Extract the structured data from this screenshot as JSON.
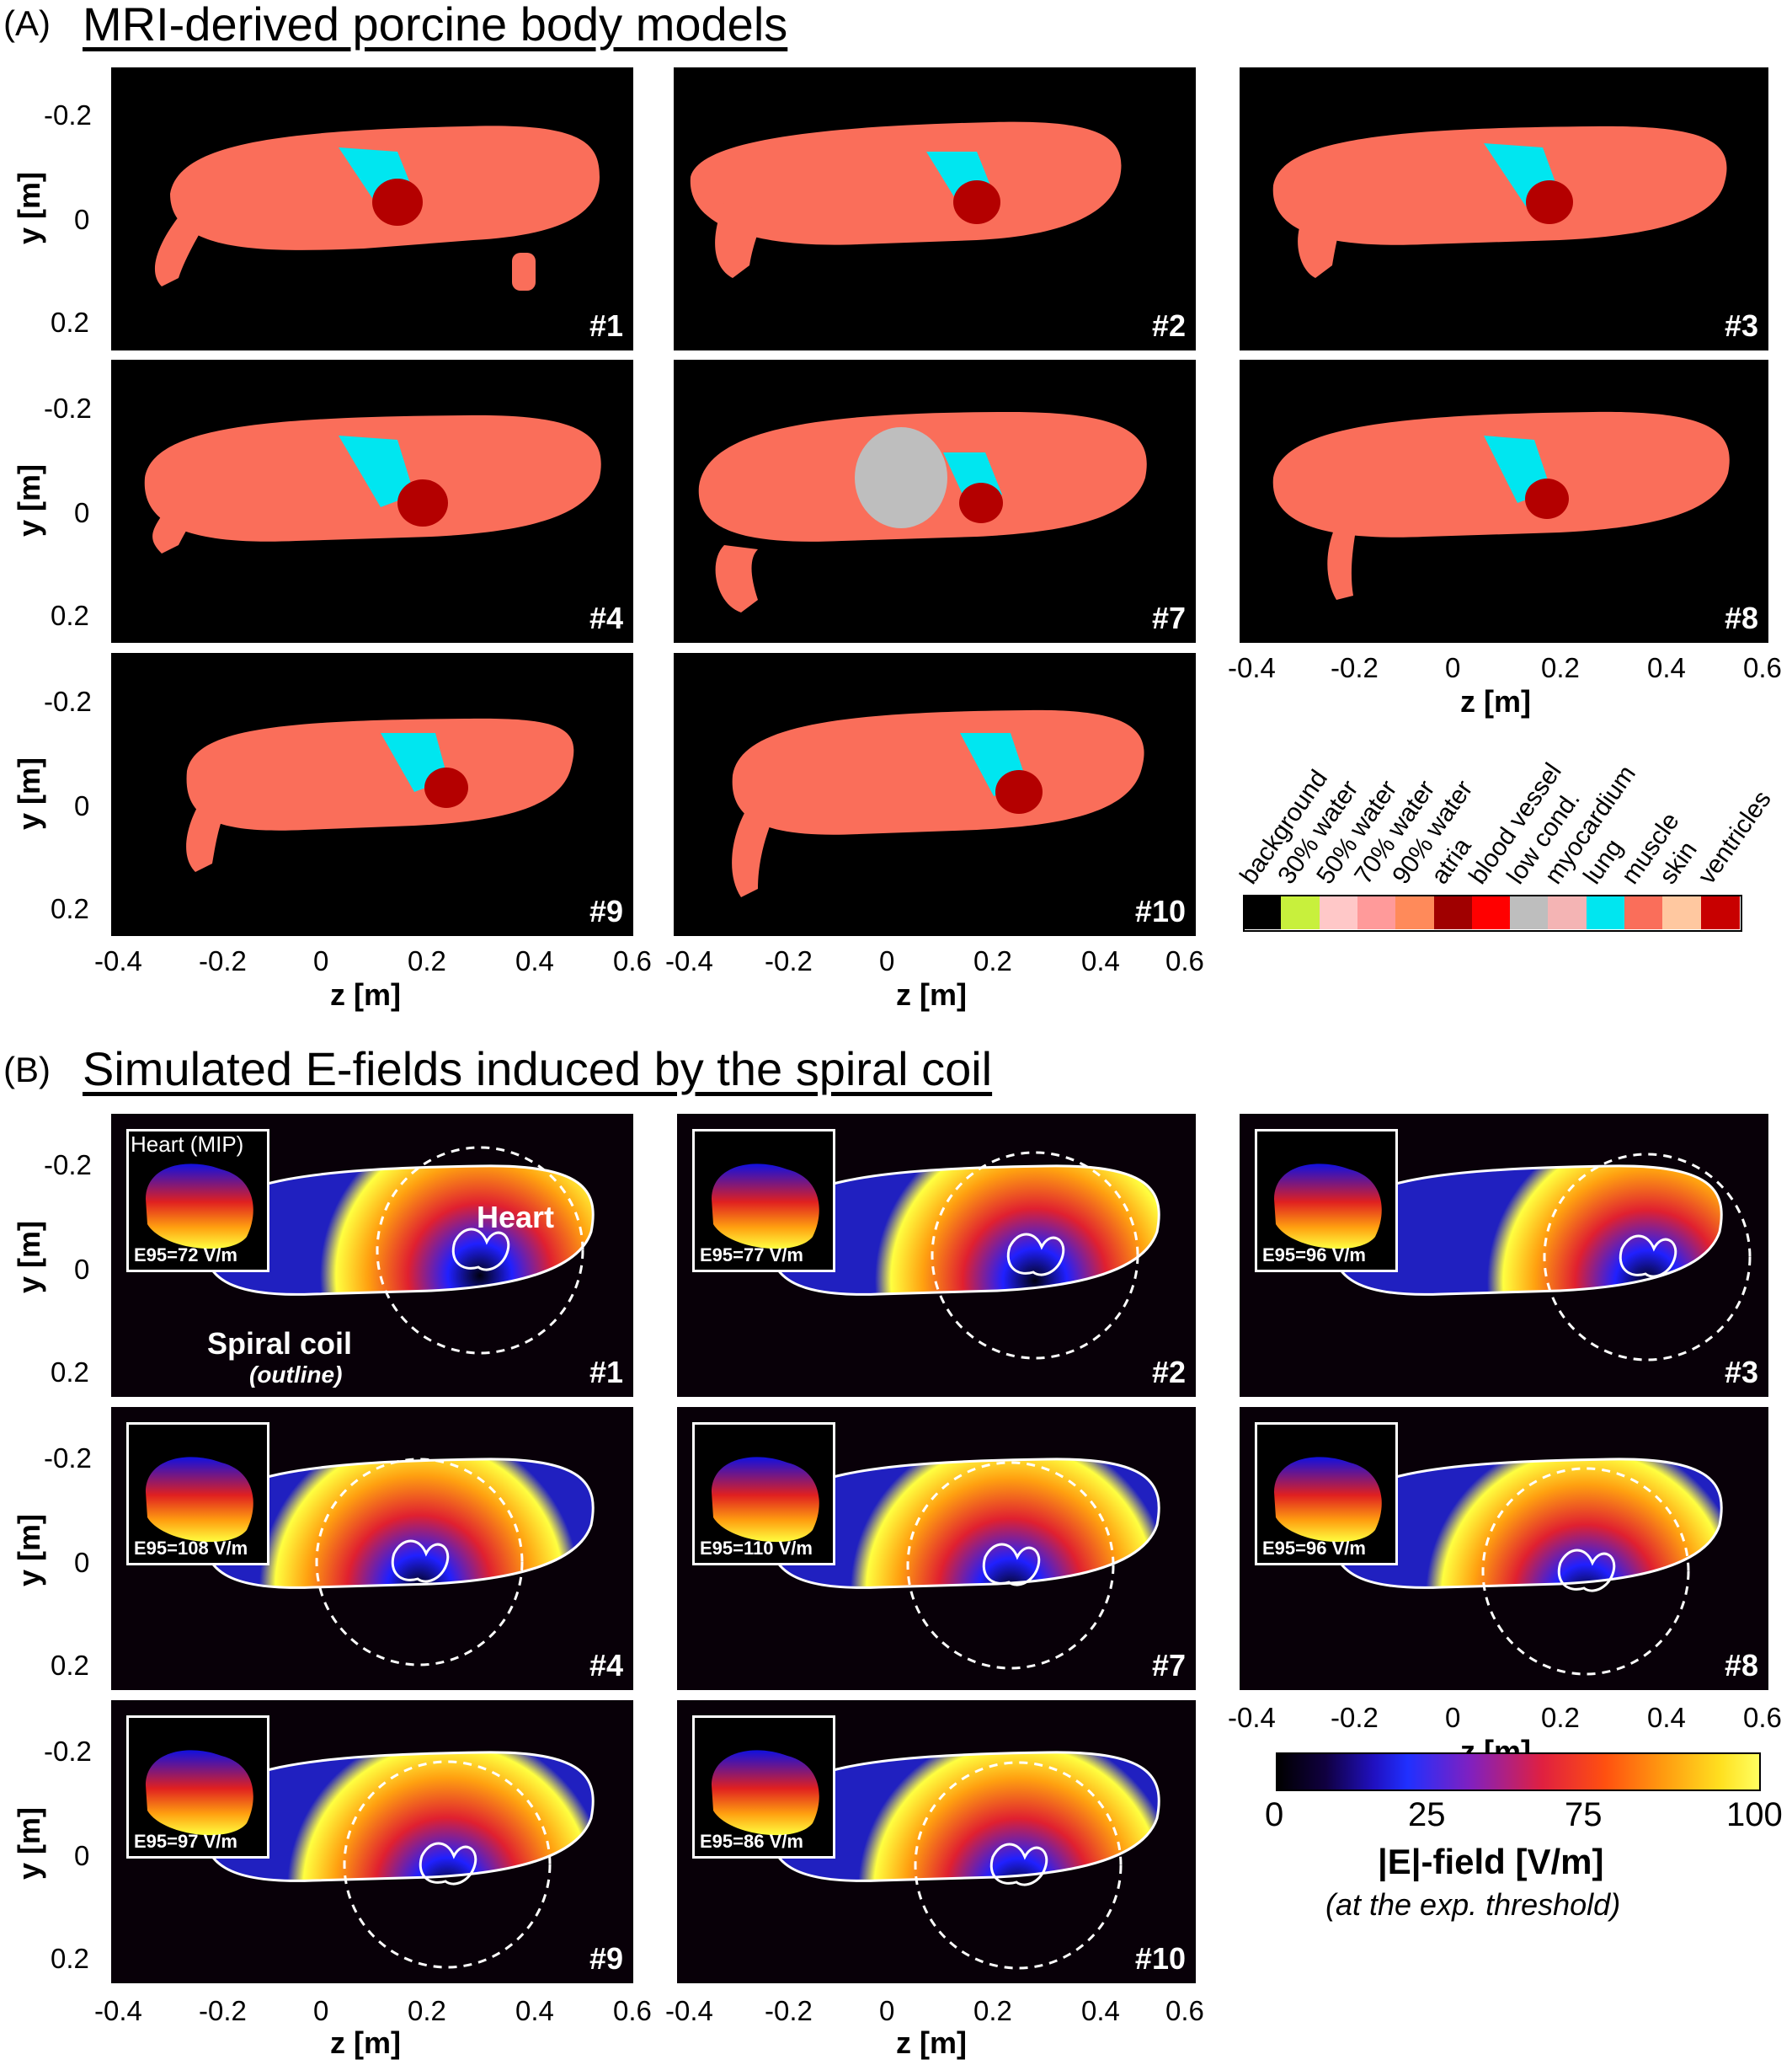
{
  "section_a": {
    "letter": "(A)",
    "title": "MRI-derived porcine body models"
  },
  "section_b": {
    "letter": "(B)",
    "title": "Simulated E-fields induced by the spiral coil"
  },
  "axes": {
    "y_label": "y [m]",
    "x_label": "z [m]",
    "y_ticks": [
      "-0.2",
      "0",
      "0.2"
    ],
    "x_ticks": [
      "-0.4",
      "-0.2",
      "0",
      "0.2",
      "0.4",
      "0.6"
    ]
  },
  "mri_panels": [
    "#1",
    "#2",
    "#3",
    "#4",
    "#7",
    "#8",
    "#9",
    "#10"
  ],
  "efield_panels": [
    {
      "id": "#1",
      "e95": "E95=72 V/m"
    },
    {
      "id": "#2",
      "e95": "E95=77 V/m"
    },
    {
      "id": "#3",
      "e95": "E95=96 V/m"
    },
    {
      "id": "#4",
      "e95": "E95=108 V/m"
    },
    {
      "id": "#7",
      "e95": "E95=110 V/m"
    },
    {
      "id": "#8",
      "e95": "E95=96 V/m"
    },
    {
      "id": "#9",
      "e95": "E95=97 V/m"
    },
    {
      "id": "#10",
      "e95": "E95=86 V/m"
    }
  ],
  "annotations": {
    "heart_mip": "Heart (MIP)",
    "heart": "Heart",
    "spiral_coil": "Spiral coil",
    "outline": "(outline)"
  },
  "tissue_legend": [
    {
      "label": "background",
      "color": "#000000"
    },
    {
      "label": "30% water",
      "color": "#c8f03c"
    },
    {
      "label": "50% water",
      "color": "#ffc8c8"
    },
    {
      "label": "70% water",
      "color": "#ff9a9a"
    },
    {
      "label": "90% water",
      "color": "#ff8a5a"
    },
    {
      "label": "atria",
      "color": "#a00000"
    },
    {
      "label": "blood vessel",
      "color": "#ff0000"
    },
    {
      "label": "low cond.",
      "color": "#bebebe"
    },
    {
      "label": "myocardium",
      "color": "#f4b4b4"
    },
    {
      "label": "lung",
      "color": "#00e6f0"
    },
    {
      "label": "muscle",
      "color": "#fa6e5a"
    },
    {
      "label": "skin",
      "color": "#ffc8a0"
    },
    {
      "label": "ventricles",
      "color": "#c80000"
    }
  ],
  "colorbar": {
    "ticks": [
      "0",
      "25",
      "75",
      "100"
    ],
    "label": "|E|-field [V/m]",
    "sublabel": "(at the exp. threshold)"
  },
  "colors": {
    "body": "#fa6e5a",
    "lung": "#00e6f0",
    "heart": "#b40000",
    "low_cond": "#bebebe"
  }
}
